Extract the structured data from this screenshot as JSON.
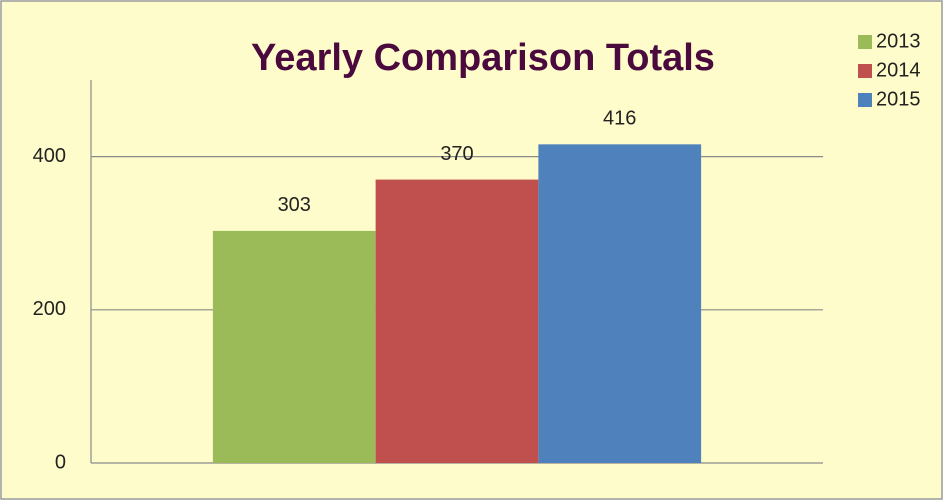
{
  "chart_data": {
    "type": "bar",
    "title": "Yearly Comparison Totals",
    "categories": [
      null
    ],
    "series": [
      {
        "name": "2013",
        "color": "#9bbb59",
        "values": [
          303
        ]
      },
      {
        "name": "2014",
        "color": "#c0504d",
        "values": [
          370
        ]
      },
      {
        "name": "2015",
        "color": "#4f81bd",
        "values": [
          416
        ]
      }
    ],
    "ylim": [
      0,
      500
    ],
    "yticks": [
      0,
      200,
      400
    ],
    "grid": true,
    "legend": "top-right"
  }
}
